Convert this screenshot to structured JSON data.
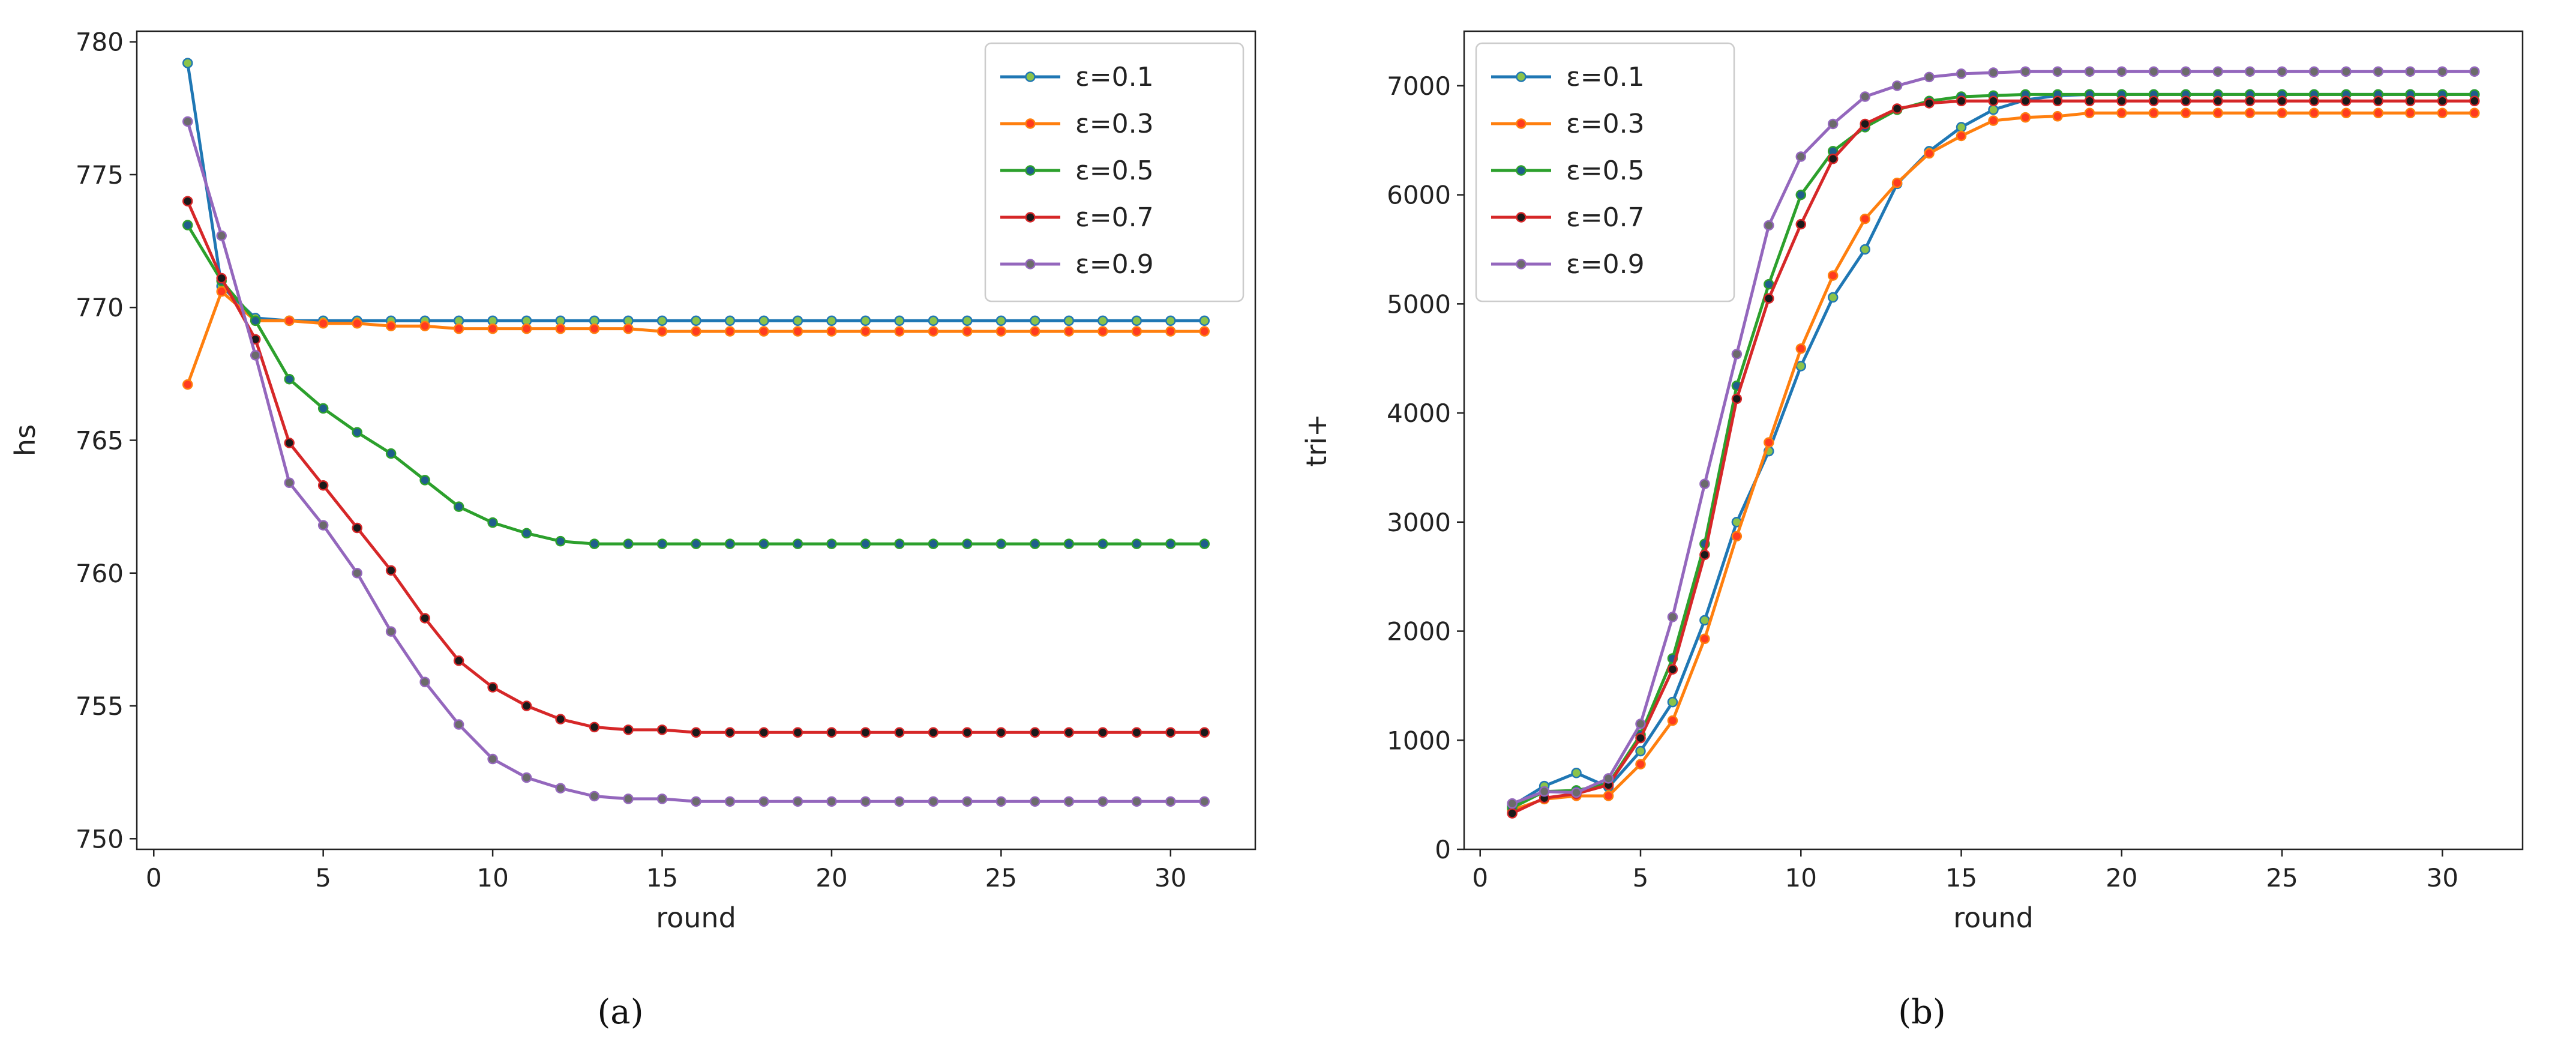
{
  "chart_data": [
    {
      "type": "line",
      "caption": "(a)",
      "xlabel": "round",
      "ylabel": "hs",
      "xlim": [
        -0.5,
        32.5
      ],
      "ylim": [
        749.6,
        780.4
      ],
      "xticks": [
        0,
        5,
        10,
        15,
        20,
        25,
        30
      ],
      "yticks": [
        750,
        755,
        760,
        765,
        770,
        775,
        780
      ],
      "legend_position": "top-right",
      "series": [
        {
          "name": "ε=0.1",
          "color": "#1f77b4",
          "marker_color": "#8bc34a",
          "x": [
            1,
            2,
            3,
            4,
            5,
            6,
            7,
            8,
            9,
            10,
            11,
            12,
            13,
            14,
            15,
            16,
            17,
            18,
            19,
            20,
            21,
            22,
            23,
            24,
            25,
            26,
            27,
            28,
            29,
            30,
            31
          ],
          "y": [
            779.2,
            770.8,
            769.6,
            769.5,
            769.5,
            769.5,
            769.5,
            769.5,
            769.5,
            769.5,
            769.5,
            769.5,
            769.5,
            769.5,
            769.5,
            769.5,
            769.5,
            769.5,
            769.5,
            769.5,
            769.5,
            769.5,
            769.5,
            769.5,
            769.5,
            769.5,
            769.5,
            769.5,
            769.5,
            769.5,
            769.5
          ]
        },
        {
          "name": "ε=0.3",
          "color": "#ff7f0e",
          "marker_color": "#ff3b1f",
          "x": [
            1,
            2,
            3,
            4,
            5,
            6,
            7,
            8,
            9,
            10,
            11,
            12,
            13,
            14,
            15,
            16,
            17,
            18,
            19,
            20,
            21,
            22,
            23,
            24,
            25,
            26,
            27,
            28,
            29,
            30,
            31
          ],
          "y": [
            767.1,
            770.6,
            769.5,
            769.5,
            769.4,
            769.4,
            769.3,
            769.3,
            769.2,
            769.2,
            769.2,
            769.2,
            769.2,
            769.2,
            769.1,
            769.1,
            769.1,
            769.1,
            769.1,
            769.1,
            769.1,
            769.1,
            769.1,
            769.1,
            769.1,
            769.1,
            769.1,
            769.1,
            769.1,
            769.1,
            769.1
          ]
        },
        {
          "name": "ε=0.5",
          "color": "#2ca02c",
          "marker_color": "#1f5e8c",
          "x": [
            1,
            2,
            3,
            4,
            5,
            6,
            7,
            8,
            9,
            10,
            11,
            12,
            13,
            14,
            15,
            16,
            17,
            18,
            19,
            20,
            21,
            22,
            23,
            24,
            25,
            26,
            27,
            28,
            29,
            30,
            31
          ],
          "y": [
            773.1,
            771.0,
            769.5,
            767.3,
            766.2,
            765.3,
            764.5,
            763.5,
            762.5,
            761.9,
            761.5,
            761.2,
            761.1,
            761.1,
            761.1,
            761.1,
            761.1,
            761.1,
            761.1,
            761.1,
            761.1,
            761.1,
            761.1,
            761.1,
            761.1,
            761.1,
            761.1,
            761.1,
            761.1,
            761.1,
            761.1
          ]
        },
        {
          "name": "ε=0.7",
          "color": "#d62728",
          "marker_color": "#1a1a1a",
          "x": [
            1,
            2,
            3,
            4,
            5,
            6,
            7,
            8,
            9,
            10,
            11,
            12,
            13,
            14,
            15,
            16,
            17,
            18,
            19,
            20,
            21,
            22,
            23,
            24,
            25,
            26,
            27,
            28,
            29,
            30,
            31
          ],
          "y": [
            774.0,
            771.1,
            768.8,
            764.9,
            763.3,
            761.7,
            760.1,
            758.3,
            756.7,
            755.7,
            755.0,
            754.5,
            754.2,
            754.1,
            754.1,
            754.0,
            754.0,
            754.0,
            754.0,
            754.0,
            754.0,
            754.0,
            754.0,
            754.0,
            754.0,
            754.0,
            754.0,
            754.0,
            754.0,
            754.0,
            754.0
          ]
        },
        {
          "name": "ε=0.9",
          "color": "#9467bd",
          "marker_color": "#6b6b6b",
          "x": [
            1,
            2,
            3,
            4,
            5,
            6,
            7,
            8,
            9,
            10,
            11,
            12,
            13,
            14,
            15,
            16,
            17,
            18,
            19,
            20,
            21,
            22,
            23,
            24,
            25,
            26,
            27,
            28,
            29,
            30,
            31
          ],
          "y": [
            777.0,
            772.7,
            768.2,
            763.4,
            761.8,
            760.0,
            757.8,
            755.9,
            754.3,
            753.0,
            752.3,
            751.9,
            751.6,
            751.5,
            751.5,
            751.4,
            751.4,
            751.4,
            751.4,
            751.4,
            751.4,
            751.4,
            751.4,
            751.4,
            751.4,
            751.4,
            751.4,
            751.4,
            751.4,
            751.4,
            751.4
          ]
        }
      ]
    },
    {
      "type": "line",
      "caption": "(b)",
      "xlabel": "round",
      "ylabel": "tri+",
      "xlim": [
        -0.5,
        32.5
      ],
      "ylim": [
        0,
        7500
      ],
      "xticks": [
        0,
        5,
        10,
        15,
        20,
        25,
        30
      ],
      "yticks": [
        0,
        1000,
        2000,
        3000,
        4000,
        5000,
        6000,
        7000
      ],
      "legend_position": "top-left",
      "series": [
        {
          "name": "ε=0.1",
          "color": "#1f77b4",
          "marker_color": "#8bc34a",
          "x": [
            1,
            2,
            3,
            4,
            5,
            6,
            7,
            8,
            9,
            10,
            11,
            12,
            13,
            14,
            15,
            16,
            17,
            18,
            19,
            20,
            21,
            22,
            23,
            24,
            25,
            26,
            27,
            28,
            29,
            30,
            31
          ],
          "y": [
            400,
            580,
            700,
            570,
            900,
            1350,
            2100,
            3000,
            3650,
            4430,
            5060,
            5500,
            6100,
            6400,
            6620,
            6780,
            6870,
            6910,
            6920,
            6920,
            6920,
            6920,
            6920,
            6920,
            6920,
            6920,
            6920,
            6920,
            6920,
            6920,
            6920
          ]
        },
        {
          "name": "ε=0.3",
          "color": "#ff7f0e",
          "marker_color": "#ff3b1f",
          "x": [
            1,
            2,
            3,
            4,
            5,
            6,
            7,
            8,
            9,
            10,
            11,
            12,
            13,
            14,
            15,
            16,
            17,
            18,
            19,
            20,
            21,
            22,
            23,
            24,
            25,
            26,
            27,
            28,
            29,
            30,
            31
          ],
          "y": [
            360,
            460,
            490,
            490,
            780,
            1180,
            1930,
            2870,
            3730,
            4590,
            5260,
            5780,
            6110,
            6380,
            6540,
            6680,
            6710,
            6720,
            6750,
            6750,
            6750,
            6750,
            6750,
            6750,
            6750,
            6750,
            6750,
            6750,
            6750,
            6750,
            6750
          ]
        },
        {
          "name": "ε=0.5",
          "color": "#2ca02c",
          "marker_color": "#1f5e8c",
          "x": [
            1,
            2,
            3,
            4,
            5,
            6,
            7,
            8,
            9,
            10,
            11,
            12,
            13,
            14,
            15,
            16,
            17,
            18,
            19,
            20,
            21,
            22,
            23,
            24,
            25,
            26,
            27,
            28,
            29,
            30,
            31
          ],
          "y": [
            380,
            530,
            540,
            600,
            1050,
            1750,
            2800,
            4250,
            5180,
            6000,
            6400,
            6620,
            6780,
            6860,
            6900,
            6910,
            6920,
            6920,
            6920,
            6920,
            6920,
            6920,
            6920,
            6920,
            6920,
            6920,
            6920,
            6920,
            6920,
            6920,
            6920
          ]
        },
        {
          "name": "ε=0.7",
          "color": "#d62728",
          "marker_color": "#1a1a1a",
          "x": [
            1,
            2,
            3,
            4,
            5,
            6,
            7,
            8,
            9,
            10,
            11,
            12,
            13,
            14,
            15,
            16,
            17,
            18,
            19,
            20,
            21,
            22,
            23,
            24,
            25,
            26,
            27,
            28,
            29,
            30,
            31
          ],
          "y": [
            330,
            470,
            510,
            590,
            1020,
            1650,
            2700,
            4130,
            5050,
            5730,
            6330,
            6650,
            6790,
            6840,
            6860,
            6860,
            6860,
            6860,
            6860,
            6860,
            6860,
            6860,
            6860,
            6860,
            6860,
            6860,
            6860,
            6860,
            6860,
            6860,
            6860
          ]
        },
        {
          "name": "ε=0.9",
          "color": "#9467bd",
          "marker_color": "#6b6b6b",
          "x": [
            1,
            2,
            3,
            4,
            5,
            6,
            7,
            8,
            9,
            10,
            11,
            12,
            13,
            14,
            15,
            16,
            17,
            18,
            19,
            20,
            21,
            22,
            23,
            24,
            25,
            26,
            27,
            28,
            29,
            30,
            31
          ],
          "y": [
            420,
            530,
            520,
            650,
            1150,
            2130,
            3350,
            4540,
            5720,
            6350,
            6650,
            6900,
            7000,
            7080,
            7110,
            7120,
            7130,
            7130,
            7130,
            7130,
            7130,
            7130,
            7130,
            7130,
            7130,
            7130,
            7130,
            7130,
            7130,
            7130,
            7130
          ]
        }
      ]
    }
  ]
}
